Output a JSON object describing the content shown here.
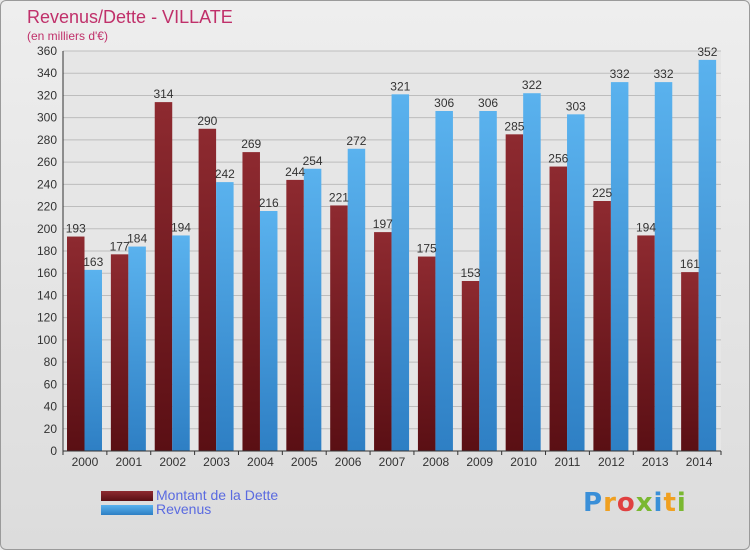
{
  "header": {
    "title": "Revenus/Dette - VILLATE",
    "subtitle": "(en milliers d'€)"
  },
  "legend": {
    "dette_label": "Montant de la Dette",
    "revenus_label": "Revenus"
  },
  "logo": {
    "text": "Proxiti"
  },
  "colors": {
    "dette": "#7a1e24",
    "revenus": "#4aa6e6",
    "title": "#c0306a",
    "legend_text": "#5a6ae0"
  },
  "chart_data": {
    "type": "bar",
    "title": "Revenus/Dette - VILLATE",
    "subtitle": "(en milliers d'€)",
    "xlabel": "",
    "ylabel": "",
    "ylim": [
      0,
      360
    ],
    "ytick_step": 20,
    "grid": true,
    "legend_position": "bottom-left",
    "categories": [
      "2000",
      "2001",
      "2002",
      "2003",
      "2004",
      "2005",
      "2006",
      "2007",
      "2008",
      "2009",
      "2010",
      "2011",
      "2012",
      "2013",
      "2014"
    ],
    "series": [
      {
        "name": "Montant de la Dette",
        "values": [
          193,
          177,
          314,
          290,
          269,
          244,
          221,
          197,
          175,
          153,
          285,
          256,
          225,
          194,
          161
        ]
      },
      {
        "name": "Revenus",
        "values": [
          163,
          184,
          194,
          242,
          216,
          254,
          272,
          321,
          306,
          306,
          322,
          303,
          332,
          332,
          352
        ]
      }
    ]
  }
}
